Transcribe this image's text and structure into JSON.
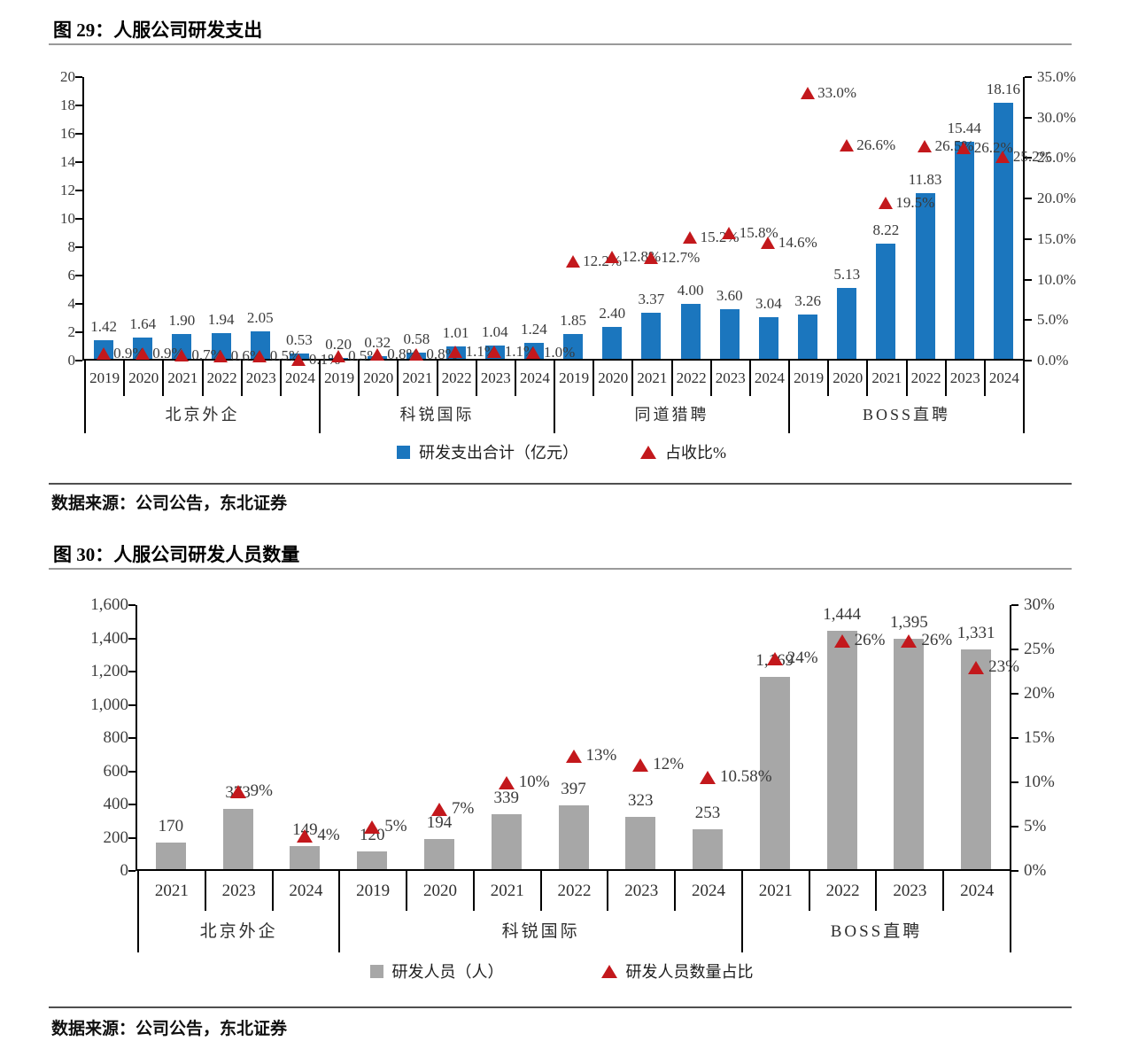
{
  "figure29": {
    "title": "图 29：人服公司研发支出",
    "legend": {
      "bar": "研发支出合计（亿元）",
      "marker": "占收比%"
    },
    "source": "数据来源：公司公告，东北证券"
  },
  "figure30": {
    "title": "图 30：人服公司研发人员数量",
    "legend": {
      "bar": "研发人员（人）",
      "marker": "研发人员数量占比"
    },
    "source": "数据来源：公司公告，东北证券"
  },
  "chart_data": [
    {
      "type": "bar",
      "title": "人服公司研发支出",
      "bar_series": "研发支出合计（亿元）",
      "marker_series": "占收比%",
      "bar_color": "#1B76BE",
      "marker_color": "#C3181C",
      "legend_position": "bottom",
      "grid": false,
      "left_axis": {
        "min": 0,
        "max": 20,
        "tick_values": [
          0,
          2,
          4,
          6,
          8,
          10,
          12,
          14,
          16,
          18,
          20
        ],
        "tick_labels": [
          "0",
          "2",
          "4",
          "6",
          "8",
          "10",
          "12",
          "14",
          "16",
          "18",
          "20"
        ]
      },
      "right_axis": {
        "min": 0,
        "max": 35,
        "tick_values": [
          0,
          5,
          10,
          15,
          20,
          25,
          30,
          35
        ],
        "tick_labels": [
          "0.0%",
          "5.0%",
          "10.0%",
          "15.0%",
          "20.0%",
          "25.0%",
          "30.0%",
          "35.0%"
        ]
      },
      "groups": [
        {
          "name": "北京外企",
          "years": [
            "2019",
            "2020",
            "2021",
            "2022",
            "2023",
            "2024"
          ],
          "bar_values": [
            1.42,
            1.64,
            1.9,
            1.94,
            2.05,
            0.53
          ],
          "bar_labels": [
            "1.42",
            "1.64",
            "1.90",
            "1.94",
            "2.05",
            "0.53"
          ],
          "pct_values": [
            0.9,
            0.9,
            0.7,
            0.6,
            0.5,
            0.1
          ],
          "pct_labels": [
            "0.9%",
            "0.9%",
            "0.7%",
            "0.6%",
            "0.5%",
            "0.1%"
          ]
        },
        {
          "name": "科锐国际",
          "years": [
            "2019",
            "2020",
            "2021",
            "2022",
            "2023",
            "2024"
          ],
          "bar_values": [
            0.2,
            0.32,
            0.58,
            1.01,
            1.04,
            1.24
          ],
          "bar_labels": [
            "0.20",
            "0.32",
            "0.58",
            "1.01",
            "1.04",
            "1.24"
          ],
          "pct_values": [
            0.5,
            0.8,
            0.8,
            1.1,
            1.1,
            1.0
          ],
          "pct_labels": [
            "0.5%",
            "0.8%",
            "0.8%",
            "1.1%",
            "1.1%",
            "1.0%"
          ]
        },
        {
          "name": "同道猎聘",
          "years": [
            "2019",
            "2020",
            "2021",
            "2022",
            "2023",
            "2024"
          ],
          "bar_values": [
            1.85,
            2.4,
            3.37,
            4.0,
            3.6,
            3.04
          ],
          "bar_labels": [
            "1.85",
            "2.40",
            "3.37",
            "4.00",
            "3.60",
            "3.04"
          ],
          "pct_values": [
            12.2,
            12.8,
            12.7,
            15.2,
            15.8,
            14.6
          ],
          "pct_labels": [
            "12.2%",
            "12.8%",
            "12.7%",
            "15.2%",
            "15.8%",
            "14.6%"
          ]
        },
        {
          "name": "BOSS直聘",
          "years": [
            "2019",
            "2020",
            "2021",
            "2022",
            "2023",
            "2024"
          ],
          "bar_values": [
            3.26,
            5.13,
            8.22,
            11.83,
            15.44,
            18.16
          ],
          "bar_labels": [
            "3.26",
            "5.13",
            "8.22",
            "11.83",
            "15.44",
            "18.16"
          ],
          "pct_values": [
            33.0,
            26.6,
            19.5,
            26.5,
            26.2,
            25.2
          ],
          "pct_labels": [
            "33.0%",
            "26.6%",
            "19.5%",
            "26.5%",
            "26.2%",
            "25.2%"
          ]
        }
      ]
    },
    {
      "type": "bar",
      "title": "人服公司研发人员数量",
      "bar_series": "研发人员（人）",
      "marker_series": "研发人员数量占比",
      "bar_color": "#A7A7A7",
      "marker_color": "#C3181C",
      "legend_position": "bottom",
      "grid": false,
      "left_axis": {
        "min": 0,
        "max": 1600,
        "tick_values": [
          0,
          200,
          400,
          600,
          800,
          1000,
          1200,
          1400,
          1600
        ],
        "tick_labels": [
          "0",
          "200",
          "400",
          "600",
          "800",
          "1,000",
          "1,200",
          "1,400",
          "1,600"
        ]
      },
      "right_axis": {
        "min": 0,
        "max": 30,
        "tick_values": [
          0,
          5,
          10,
          15,
          20,
          25,
          30
        ],
        "tick_labels": [
          "0%",
          "5%",
          "10%",
          "15%",
          "20%",
          "25%",
          "30%"
        ]
      },
      "groups": [
        {
          "name": "北京外企",
          "years": [
            "2021",
            "2023",
            "2024"
          ],
          "bar_values": [
            170,
            373,
            149
          ],
          "bar_labels": [
            "170",
            "373",
            "149"
          ],
          "pct_values": [
            null,
            9,
            4
          ],
          "pct_labels": [
            "",
            "9%",
            "4%"
          ]
        },
        {
          "name": "科锐国际",
          "years": [
            "2019",
            "2020",
            "2021",
            "2022",
            "2023",
            "2024"
          ],
          "bar_values": [
            120,
            194,
            339,
            397,
            323,
            253
          ],
          "bar_labels": [
            "120",
            "194",
            "339",
            "397",
            "323",
            "253"
          ],
          "pct_values": [
            5,
            7,
            10,
            13,
            12,
            10.58
          ],
          "pct_labels": [
            "5%",
            "7%",
            "10%",
            "13%",
            "12%",
            "10.58%"
          ]
        },
        {
          "name": "BOSS直聘",
          "years": [
            "2021",
            "2022",
            "2023",
            "2024"
          ],
          "bar_values": [
            1169,
            1444,
            1395,
            1331
          ],
          "bar_labels": [
            "1,169",
            "1,444",
            "1,395",
            "1,331"
          ],
          "pct_values": [
            24,
            26,
            26,
            23
          ],
          "pct_labels": [
            "24%",
            "26%",
            "26%",
            "23%"
          ]
        }
      ]
    }
  ]
}
